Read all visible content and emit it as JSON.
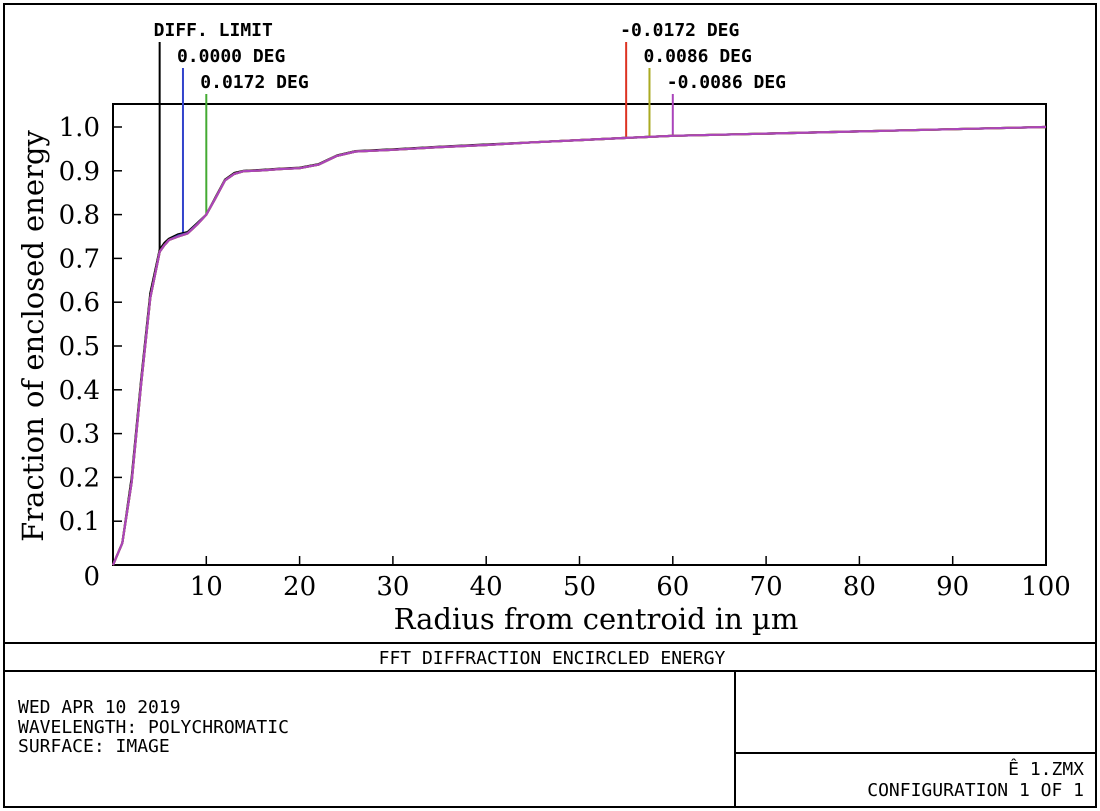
{
  "chart_data": {
    "type": "line",
    "title": "FFT DIFFRACTION ENCIRCLED ENERGY",
    "xlabel": "Radius from centroid in µm",
    "ylabel": "Fraction of enclosed energy",
    "xlim": [
      0,
      100
    ],
    "ylim": [
      0,
      1.05
    ],
    "x_ticks": [
      "10",
      "20",
      "30",
      "40",
      "50",
      "60",
      "70",
      "80",
      "90",
      "100"
    ],
    "y_ticks": [
      "0",
      "0.1",
      "0.2",
      "0.3",
      "0.4",
      "0.5",
      "0.6",
      "0.7",
      "0.8",
      "0.9",
      "1.0"
    ],
    "grid": false,
    "series": [
      {
        "name": "DIFF. LIMIT",
        "color": "#000000",
        "marker_x": 5.0,
        "x": [
          0,
          1,
          2,
          3,
          4,
          5,
          5.5,
          6,
          7,
          8,
          9,
          10,
          11,
          12,
          13,
          14,
          16,
          18,
          20,
          22,
          24,
          26,
          28,
          30,
          35,
          40,
          45,
          50,
          55,
          60,
          70,
          80,
          90,
          100
        ],
        "y": [
          0,
          0.05,
          0.2,
          0.42,
          0.62,
          0.72,
          0.735,
          0.745,
          0.755,
          0.76,
          0.78,
          0.8,
          0.84,
          0.88,
          0.895,
          0.9,
          0.902,
          0.905,
          0.907,
          0.915,
          0.935,
          0.945,
          0.947,
          0.949,
          0.955,
          0.96,
          0.965,
          0.97,
          0.975,
          0.98,
          0.985,
          0.99,
          0.995,
          1.0
        ]
      },
      {
        "name": "0.0000 DEG",
        "color": "#3344cc",
        "marker_x": 7.5,
        "x": [
          0,
          1,
          2,
          3,
          4,
          5,
          5.5,
          6,
          7,
          8,
          9,
          10,
          11,
          12,
          13,
          14,
          16,
          18,
          20,
          22,
          24,
          26,
          28,
          30,
          35,
          40,
          45,
          50,
          55,
          60,
          70,
          80,
          90,
          100
        ],
        "y": [
          0,
          0.05,
          0.19,
          0.41,
          0.61,
          0.715,
          0.73,
          0.742,
          0.752,
          0.758,
          0.778,
          0.8,
          0.838,
          0.878,
          0.893,
          0.899,
          0.901,
          0.904,
          0.906,
          0.914,
          0.934,
          0.944,
          0.946,
          0.948,
          0.954,
          0.959,
          0.965,
          0.97,
          0.975,
          0.98,
          0.985,
          0.99,
          0.995,
          1.0
        ]
      },
      {
        "name": "0.0172 DEG",
        "color": "#44aa33",
        "marker_x": 10.0,
        "x": [
          0,
          1,
          2,
          3,
          4,
          5,
          5.5,
          6,
          7,
          8,
          9,
          10,
          11,
          12,
          13,
          14,
          16,
          18,
          20,
          22,
          24,
          26,
          28,
          30,
          35,
          40,
          45,
          50,
          55,
          60,
          70,
          80,
          90,
          100
        ],
        "y": [
          0,
          0.05,
          0.19,
          0.41,
          0.61,
          0.715,
          0.73,
          0.742,
          0.75,
          0.757,
          0.777,
          0.8,
          0.838,
          0.878,
          0.893,
          0.899,
          0.901,
          0.904,
          0.906,
          0.914,
          0.934,
          0.944,
          0.946,
          0.948,
          0.954,
          0.959,
          0.965,
          0.97,
          0.975,
          0.98,
          0.985,
          0.99,
          0.995,
          1.0
        ]
      },
      {
        "name": "-0.0172 DEG",
        "color": "#dd3322",
        "marker_x": 55.0,
        "x": [
          0,
          1,
          2,
          3,
          4,
          5,
          5.5,
          6,
          7,
          8,
          9,
          10,
          11,
          12,
          13,
          14,
          16,
          18,
          20,
          22,
          24,
          26,
          28,
          30,
          35,
          40,
          45,
          50,
          55,
          60,
          70,
          80,
          90,
          100
        ],
        "y": [
          0,
          0.05,
          0.19,
          0.41,
          0.61,
          0.715,
          0.73,
          0.742,
          0.75,
          0.757,
          0.777,
          0.8,
          0.838,
          0.878,
          0.893,
          0.899,
          0.901,
          0.904,
          0.906,
          0.914,
          0.934,
          0.944,
          0.946,
          0.948,
          0.954,
          0.959,
          0.965,
          0.97,
          0.975,
          0.98,
          0.985,
          0.99,
          0.995,
          1.0
        ]
      },
      {
        "name": "0.0086 DEG",
        "color": "#aaaa22",
        "marker_x": 57.5,
        "x": [
          0,
          1,
          2,
          3,
          4,
          5,
          5.5,
          6,
          7,
          8,
          9,
          10,
          11,
          12,
          13,
          14,
          16,
          18,
          20,
          22,
          24,
          26,
          28,
          30,
          35,
          40,
          45,
          50,
          55,
          60,
          70,
          80,
          90,
          100
        ],
        "y": [
          0,
          0.05,
          0.19,
          0.41,
          0.61,
          0.715,
          0.73,
          0.742,
          0.75,
          0.757,
          0.777,
          0.8,
          0.838,
          0.878,
          0.893,
          0.899,
          0.901,
          0.904,
          0.906,
          0.914,
          0.934,
          0.944,
          0.946,
          0.948,
          0.954,
          0.959,
          0.965,
          0.97,
          0.975,
          0.98,
          0.985,
          0.99,
          0.995,
          1.0
        ]
      },
      {
        "name": "-0.0086 DEG",
        "color": "#aa44bb",
        "marker_x": 60.0,
        "x": [
          0,
          1,
          2,
          3,
          4,
          5,
          5.5,
          6,
          7,
          8,
          9,
          10,
          11,
          12,
          13,
          14,
          16,
          18,
          20,
          22,
          24,
          26,
          28,
          30,
          35,
          40,
          45,
          50,
          55,
          60,
          70,
          80,
          90,
          100
        ],
        "y": [
          0,
          0.05,
          0.19,
          0.41,
          0.61,
          0.715,
          0.73,
          0.742,
          0.75,
          0.757,
          0.777,
          0.8,
          0.838,
          0.878,
          0.893,
          0.899,
          0.901,
          0.904,
          0.906,
          0.914,
          0.934,
          0.944,
          0.946,
          0.948,
          0.954,
          0.959,
          0.965,
          0.97,
          0.975,
          0.98,
          0.985,
          0.99,
          0.995,
          1.0
        ]
      }
    ]
  },
  "footer": {
    "info_lines": [
      "WED APR 10 2019",
      "WAVELENGTH: POLYCHROMATIC",
      "SURFACE: IMAGE"
    ],
    "file_name": "Ê 1.ZMX",
    "configuration": "CONFIGURATION 1 OF 1"
  }
}
